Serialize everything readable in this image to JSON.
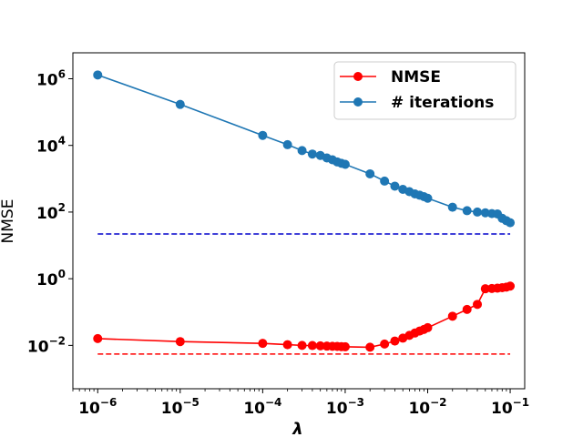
{
  "chart_data": {
    "type": "line",
    "xscale": "log",
    "yscale": "log",
    "xlim": [
      5e-07,
      0.15
    ],
    "ylim": [
      0.0005,
      6000000
    ],
    "xlabel": "λ",
    "ylabel": "NMSE",
    "x_ticks": [
      {
        "value": 1e-06,
        "mant": "10",
        "exp": "−6"
      },
      {
        "value": 1e-05,
        "mant": "10",
        "exp": "−5"
      },
      {
        "value": 0.0001,
        "mant": "10",
        "exp": "−4"
      },
      {
        "value": 0.001,
        "mant": "10",
        "exp": "−3"
      },
      {
        "value": 0.01,
        "mant": "10",
        "exp": "−2"
      },
      {
        "value": 0.1,
        "mant": "10",
        "exp": "−1"
      }
    ],
    "y_ticks": [
      {
        "value": 0.01,
        "mant": "10",
        "exp": "−2"
      },
      {
        "value": 1,
        "mant": "10",
        "exp": "0"
      },
      {
        "value": 100,
        "mant": "10",
        "exp": "2"
      },
      {
        "value": 10000,
        "mant": "10",
        "exp": "4"
      },
      {
        "value": 1000000,
        "mant": "10",
        "exp": "6"
      }
    ],
    "x": [
      1e-06,
      1e-05,
      0.0001,
      0.0002,
      0.0003,
      0.0004,
      0.0005,
      0.0006,
      0.0007,
      0.0008,
      0.0009,
      0.001,
      0.002,
      0.003,
      0.004,
      0.005,
      0.006,
      0.007,
      0.008,
      0.009,
      0.01,
      0.02,
      0.03,
      0.04,
      0.05,
      0.06,
      0.07,
      0.08,
      0.09,
      0.1
    ],
    "series": [
      {
        "name": "NMSE",
        "color": "#ff0000",
        "values": [
          0.016,
          0.013,
          0.0115,
          0.0105,
          0.01,
          0.0099,
          0.0097,
          0.0095,
          0.0094,
          0.0093,
          0.0092,
          0.0091,
          0.0088,
          0.011,
          0.0135,
          0.0165,
          0.02,
          0.0235,
          0.027,
          0.03,
          0.034,
          0.075,
          0.12,
          0.17,
          0.5,
          0.51,
          0.52,
          0.54,
          0.56,
          0.6
        ]
      },
      {
        "name": "# iterations",
        "color": "#1f77b4",
        "values": [
          1300000,
          170000,
          20000,
          10500,
          7000,
          5500,
          5000,
          4200,
          3700,
          3200,
          2900,
          2700,
          1400,
          850,
          600,
          480,
          410,
          350,
          320,
          290,
          260,
          140,
          110,
          100,
          95,
          90,
          88,
          65,
          55,
          48
        ]
      }
    ],
    "reference_lines": [
      {
        "name": "iterations-reference",
        "y": 22,
        "color": "#0000cc",
        "style": "dashed"
      },
      {
        "name": "nmse-reference",
        "y": 0.0055,
        "color": "#ff0000",
        "style": "dashed"
      }
    ],
    "legend": {
      "position": "top-right",
      "entries": [
        "NMSE",
        "# iterations"
      ]
    },
    "grid": false
  }
}
